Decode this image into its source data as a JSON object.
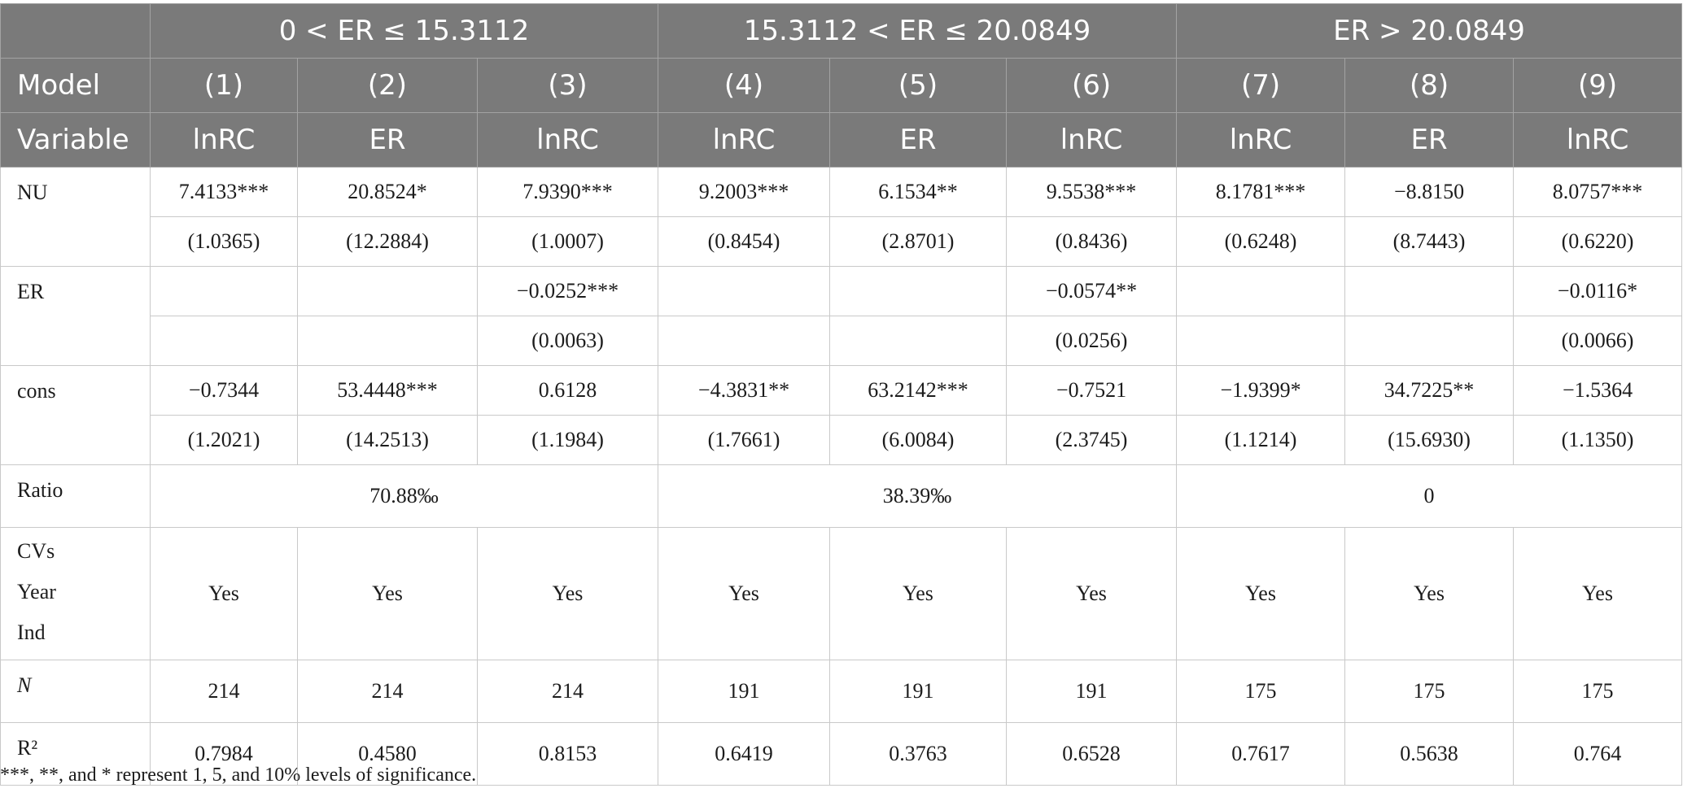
{
  "header": {
    "groups": [
      "0 < ER ≤ 15.3112",
      "15.3112 < ER ≤ 20.0849",
      "ER > 20.0849"
    ],
    "model_label": "Model",
    "models": [
      "(1)",
      "(2)",
      "(3)",
      "(4)",
      "(5)",
      "(6)",
      "(7)",
      "(8)",
      "(9)"
    ],
    "variable_label": "Variable",
    "variables": [
      "lnRC",
      "ER",
      "lnRC",
      "lnRC",
      "ER",
      "lnRC",
      "lnRC",
      "ER",
      "lnRC"
    ]
  },
  "rows": {
    "nu": {
      "label": "NU",
      "coef": [
        "7.4133***",
        "20.8524*",
        "7.9390***",
        "9.2003***",
        "6.1534**",
        "9.5538***",
        "8.1781***",
        "−8.8150",
        "8.0757***"
      ],
      "se": [
        "(1.0365)",
        "(12.2884)",
        "(1.0007)",
        "(0.8454)",
        "(2.8701)",
        "(0.8436)",
        "(0.6248)",
        "(8.7443)",
        "(0.6220)"
      ]
    },
    "er": {
      "label": "ER",
      "coef": [
        "",
        "",
        "−0.0252***",
        "",
        "",
        "−0.0574**",
        "",
        "",
        "−0.0116*"
      ],
      "se": [
        "",
        "",
        "(0.0063)",
        "",
        "",
        "(0.0256)",
        "",
        "",
        "(0.0066)"
      ]
    },
    "cons": {
      "label": "cons",
      "coef": [
        "−0.7344",
        "53.4448***",
        "0.6128",
        "−4.3831**",
        "63.2142***",
        "−0.7521",
        "−1.9399*",
        "34.7225**",
        "−1.5364"
      ],
      "se": [
        "(1.2021)",
        "(14.2513)",
        "(1.1984)",
        "(1.7661)",
        "(6.0084)",
        "(2.3745)",
        "(1.1214)",
        "(15.6930)",
        "(1.1350)"
      ]
    },
    "ratio": {
      "label": "Ratio",
      "values": [
        "70.88‰",
        "38.39‰",
        "0"
      ]
    },
    "controls": {
      "labels": [
        "CVs",
        "Year",
        "Ind"
      ],
      "values": [
        "Yes",
        "Yes",
        "Yes",
        "Yes",
        "Yes",
        "Yes",
        "Yes",
        "Yes",
        "Yes"
      ]
    },
    "n": {
      "label": "N",
      "values": [
        "214",
        "214",
        "214",
        "191",
        "191",
        "191",
        "175",
        "175",
        "175"
      ]
    },
    "r2": {
      "label": "R²",
      "values": [
        "0.7984",
        "0.4580",
        "0.8153",
        "0.6419",
        "0.3763",
        "0.6528",
        "0.7617",
        "0.5638",
        "0.764"
      ]
    }
  },
  "footnote": "***, **, and * represent 1, 5, and 10% levels of significance."
}
